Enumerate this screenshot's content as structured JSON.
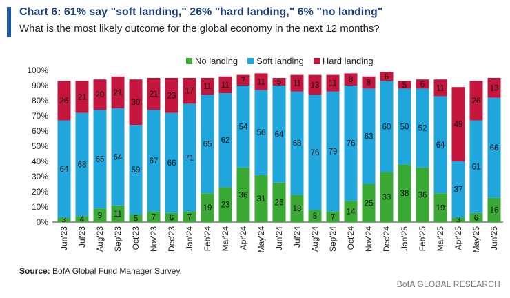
{
  "header": {
    "title": "Chart 6: 61% say \"soft landing,\" 26% \"hard landing,\" 6% \"no landing\"",
    "subtitle": "What is the most likely outcome for the global economy in the next 12 months?"
  },
  "footer": {
    "source_label": "Source:",
    "source_text": "BofA Global Fund Manager Survey.",
    "brand": "BofA GLOBAL RESEARCH"
  },
  "colors": {
    "no_landing": "#3aaa35",
    "soft_landing": "#1ea6dd",
    "hard_landing": "#c4163c",
    "accent": "#1f5aa6"
  },
  "chart_data": {
    "type": "bar",
    "stacked": true,
    "title": "Chart 6: 61% say \"soft landing,\" 26% \"hard landing,\" 6% \"no landing\"",
    "xlabel": "",
    "ylabel": "",
    "ylim": [
      0,
      100
    ],
    "yticks": [
      "0%",
      "10%",
      "20%",
      "30%",
      "40%",
      "50%",
      "60%",
      "70%",
      "80%",
      "90%",
      "100%"
    ],
    "legend_position": "top",
    "categories": [
      "Jun'23",
      "Jul'23",
      "Aug'23",
      "Sep'23",
      "Oct'23",
      "Nov'23",
      "Dec'23",
      "Jan'24",
      "Feb'24",
      "Mar'24",
      "Apr'24",
      "May'24",
      "Jun'24",
      "Jul'24",
      "Aug'24",
      "Sep'24",
      "Oct'24",
      "Nov'24",
      "Dec'24",
      "Jan'25",
      "Feb'25",
      "Mar'25",
      "Apr'25",
      "May'25",
      "Jun'25"
    ],
    "series": [
      {
        "name": "No landing",
        "key": "no_landing",
        "values": [
          3,
          4,
          9,
          11,
          5,
          7,
          6,
          7,
          19,
          23,
          36,
          31,
          26,
          18,
          8,
          7,
          14,
          25,
          33,
          38,
          36,
          19,
          3,
          6,
          16
        ]
      },
      {
        "name": "Soft landing",
        "key": "soft_landing",
        "values": [
          64,
          68,
          65,
          64,
          59,
          67,
          66,
          71,
          65,
          62,
          54,
          56,
          64,
          68,
          76,
          79,
          76,
          63,
          60,
          50,
          52,
          64,
          37,
          61,
          66
        ]
      },
      {
        "name": "Hard landing",
        "key": "hard_landing",
        "values": [
          26,
          21,
          20,
          21,
          30,
          21,
          23,
          17,
          11,
          11,
          7,
          11,
          5,
          11,
          13,
          11,
          8,
          8,
          6,
          5,
          6,
          11,
          49,
          26,
          13
        ]
      }
    ]
  }
}
